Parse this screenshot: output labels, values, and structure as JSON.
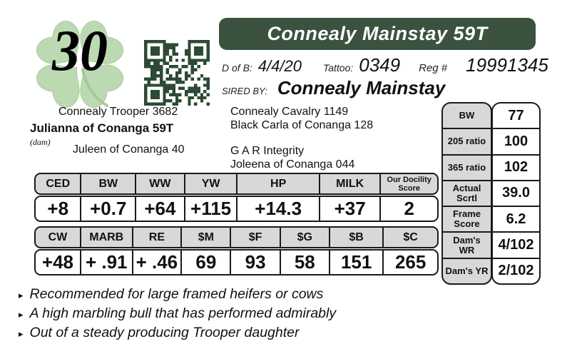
{
  "colors": {
    "header_green": "#3a523e",
    "qr_green": "#2d4a34",
    "clover_fill": "#b9d9ae",
    "clover_stroke": "#a3c795",
    "table_grey": "#d8d8d8",
    "table_border": "#1a1a1a"
  },
  "lot_number": "30",
  "title": "Connealy Mainstay 59T",
  "vitals": {
    "dob_label": "D of B:",
    "dob_value": "4/4/20",
    "tattoo_label": "Tattoo:",
    "tattoo_value": "0349",
    "reg_label": "Reg #",
    "reg_value": "19991345"
  },
  "sired_by": {
    "label": "SIRED BY:",
    "name": "Connealy Mainstay"
  },
  "dam_pedigree": {
    "sire_of_dam": "Connealy Trooper 3682",
    "dam_name": "Julianna of Conanga 59T",
    "dam_tag": "(dam)",
    "dam_of_dam": "Juleen of Conanga 40"
  },
  "sire_pedigree": {
    "sires_sire": "Connealy Cavalry 1149",
    "sires_dam": "Black Carla of Conanga 128",
    "dams_sire": "G A R Integrity",
    "dams_dam": "Joleena of Conanga 044"
  },
  "epd_primary": {
    "headers": [
      "CED",
      "BW",
      "WW",
      "YW",
      "HP",
      "MILK",
      "Our Docility Score"
    ],
    "values": [
      "+8",
      "+0.7",
      "+64",
      "+115",
      "+14.3",
      "+37",
      "2"
    ]
  },
  "epd_dollar": {
    "headers": [
      "CW",
      "MARB",
      "RE",
      "$M",
      "$F",
      "$G",
      "$B",
      "$C"
    ],
    "values": [
      "+48",
      "+ .91",
      "+ .46",
      "69",
      "93",
      "58",
      "151",
      "265"
    ]
  },
  "performance": {
    "rows": [
      {
        "label": "BW",
        "value": "77"
      },
      {
        "label": "205 ratio",
        "value": "100"
      },
      {
        "label": "365 ratio",
        "value": "102"
      },
      {
        "label": "Actual Scrtl",
        "value": "39.0"
      },
      {
        "label": "Frame Score",
        "value": "6.2"
      },
      {
        "label": "Dam's WR",
        "value": "4/102"
      },
      {
        "label": "Dam's YR",
        "value": "2/102"
      }
    ]
  },
  "notes": {
    "bullet": "▸",
    "items": [
      "Recommended for large framed heifers or cows",
      "A high marbling bull that has performed admirably",
      "Out of a steady producing Trooper daughter"
    ]
  },
  "icons": {
    "clover": "four-leaf-clover-icon",
    "qr": "qr-code"
  }
}
